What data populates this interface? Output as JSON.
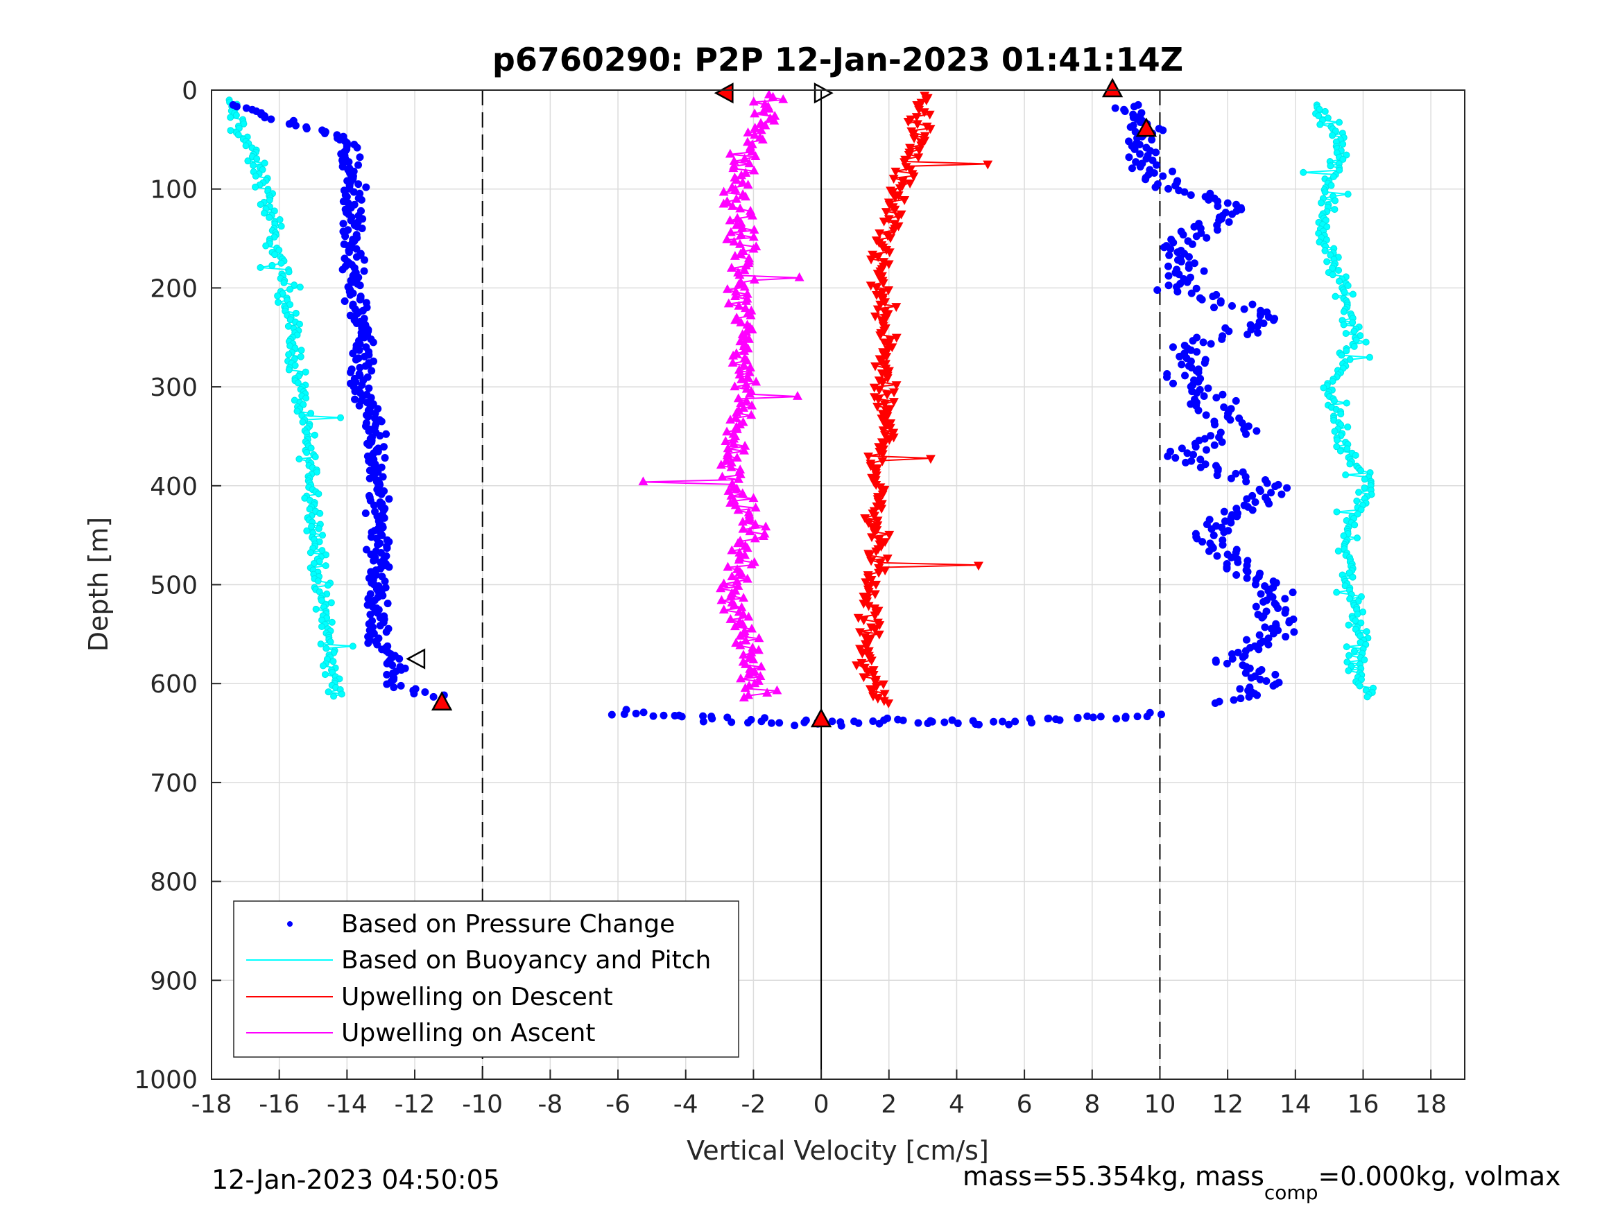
{
  "chart_data": {
    "type": "scatter",
    "title": "p6760290: P2P 12-Jan-2023 01:41:14Z",
    "xlabel": "Vertical Velocity [cm/s]",
    "ylabel": "Depth [m]",
    "xlim": [
      -18,
      19
    ],
    "ylim": [
      0,
      1000
    ],
    "y_reversed": true,
    "grid": true,
    "legend_position": "bottom-left",
    "x_ticks": [
      "-18",
      "-16",
      "-14",
      "-12",
      "-10",
      "-8",
      "-6",
      "-4",
      "-2",
      "0",
      "2",
      "4",
      "6",
      "8",
      "10",
      "12",
      "14",
      "16",
      "18"
    ],
    "y_ticks": [
      "0",
      "100",
      "200",
      "300",
      "400",
      "500",
      "600",
      "700",
      "800",
      "900",
      "1000"
    ],
    "reference_lines": [
      {
        "x": -10,
        "style": "dashed"
      },
      {
        "x": 0,
        "style": "solid"
      },
      {
        "x": 10,
        "style": "dashed"
      }
    ],
    "series": [
      {
        "name": "Based on Pressure Change",
        "color": "#0000ff",
        "marker": "dot",
        "profiles": [
          {
            "segment": "dive",
            "depth": [
              15,
              50,
              100,
              150,
              200,
              250,
              300,
              350,
              400,
              450,
              500,
              550,
              580,
              600,
              615
            ],
            "velocity": [
              -17.3,
              -14.0,
              -13.8,
              -13.9,
              -13.8,
              -13.5,
              -13.6,
              -13.2,
              -13.1,
              -13.0,
              -13.1,
              -13.2,
              -12.5,
              -12.8,
              -11.1
            ]
          },
          {
            "segment": "climb",
            "depth": [
              620,
              600,
              575,
              550,
              500,
              450,
              400,
              370,
              340,
              300,
              260,
              230,
              200,
              150,
              120,
              90,
              60,
              40,
              15
            ],
            "velocity": [
              12.0,
              13.4,
              12.0,
              13.4,
              13.2,
              11.3,
              13.3,
              10.6,
              12.4,
              11.0,
              10.8,
              13.3,
              10.4,
              10.8,
              12.2,
              10.0,
              9.5,
              9.6,
              9.0
            ]
          }
        ],
        "bottom_turn": {
          "depth": [
            630,
            635,
            640,
            638,
            640,
            635,
            630
          ],
          "velocity": [
            -6.0,
            -3.5,
            -1.0,
            2.0,
            5.0,
            8.0,
            10.0
          ]
        }
      },
      {
        "name": "Based on Buoyancy and Pitch",
        "color": "#00ffff",
        "marker": "circle-line",
        "profiles": [
          {
            "segment": "dive",
            "depth": [
              10,
              50,
              100,
              150,
              200,
              250,
              300,
              350,
              400,
              450,
              500,
              550,
              600,
              615
            ],
            "velocity": [
              -17.5,
              -17.0,
              -16.4,
              -16.2,
              -15.8,
              -15.6,
              -15.4,
              -15.2,
              -15.0,
              -14.9,
              -14.8,
              -14.6,
              -14.4,
              -14.3
            ]
          },
          {
            "segment": "climb",
            "depth": [
              615,
              600,
              550,
              500,
              450,
              400,
              350,
              300,
              250,
              200,
              150,
              100,
              50,
              15
            ],
            "velocity": [
              16.3,
              15.8,
              15.9,
              15.6,
              15.5,
              16.2,
              15.3,
              15.0,
              15.8,
              15.4,
              14.8,
              15.0,
              15.4,
              14.6
            ]
          }
        ]
      },
      {
        "name": "Upwelling on Descent",
        "color": "#ff0000",
        "marker": "triangle-down",
        "profile": {
          "depth": [
            5,
            50,
            100,
            150,
            200,
            250,
            300,
            350,
            400,
            450,
            500,
            550,
            600,
            620
          ],
          "velocity": [
            3.0,
            2.8,
            2.3,
            1.8,
            1.7,
            1.9,
            1.8,
            1.9,
            1.6,
            1.7,
            1.5,
            1.4,
            1.5,
            1.8
          ]
        }
      },
      {
        "name": "Upwelling on Ascent",
        "color": "#ff00ff",
        "marker": "triangle-up",
        "profile": {
          "depth": [
            5,
            50,
            100,
            150,
            200,
            250,
            300,
            350,
            400,
            450,
            500,
            550,
            600,
            615
          ],
          "velocity": [
            -1.5,
            -2.0,
            -2.6,
            -2.3,
            -2.4,
            -2.3,
            -2.2,
            -2.5,
            -2.6,
            -2.0,
            -2.6,
            -2.3,
            -2.0,
            -1.9
          ]
        }
      }
    ],
    "turn_markers": [
      {
        "depth": 3,
        "velocity": 0.0,
        "direction": "right"
      },
      {
        "depth": 3,
        "velocity": -2.8,
        "direction": "left",
        "fill": "#ff0000"
      },
      {
        "depth": 0,
        "velocity": 8.6,
        "direction": "up",
        "fill": "#ff0000"
      },
      {
        "depth": 40,
        "velocity": 9.6,
        "direction": "up",
        "fill": "#ff0000"
      },
      {
        "depth": 620,
        "velocity": -11.2,
        "direction": "up",
        "fill": "#ff0000"
      },
      {
        "depth": 637,
        "velocity": 0.0,
        "direction": "up",
        "fill": "#ff0000"
      },
      {
        "depth": 575,
        "velocity": -11.9,
        "direction": "left"
      }
    ]
  },
  "footer": {
    "timestamp": "12-Jan-2023 04:50:05",
    "mass_prefix": "mass=55.354kg, mass",
    "mass_subscript": "comp",
    "mass_suffix": "=0.000kg, volmax"
  }
}
